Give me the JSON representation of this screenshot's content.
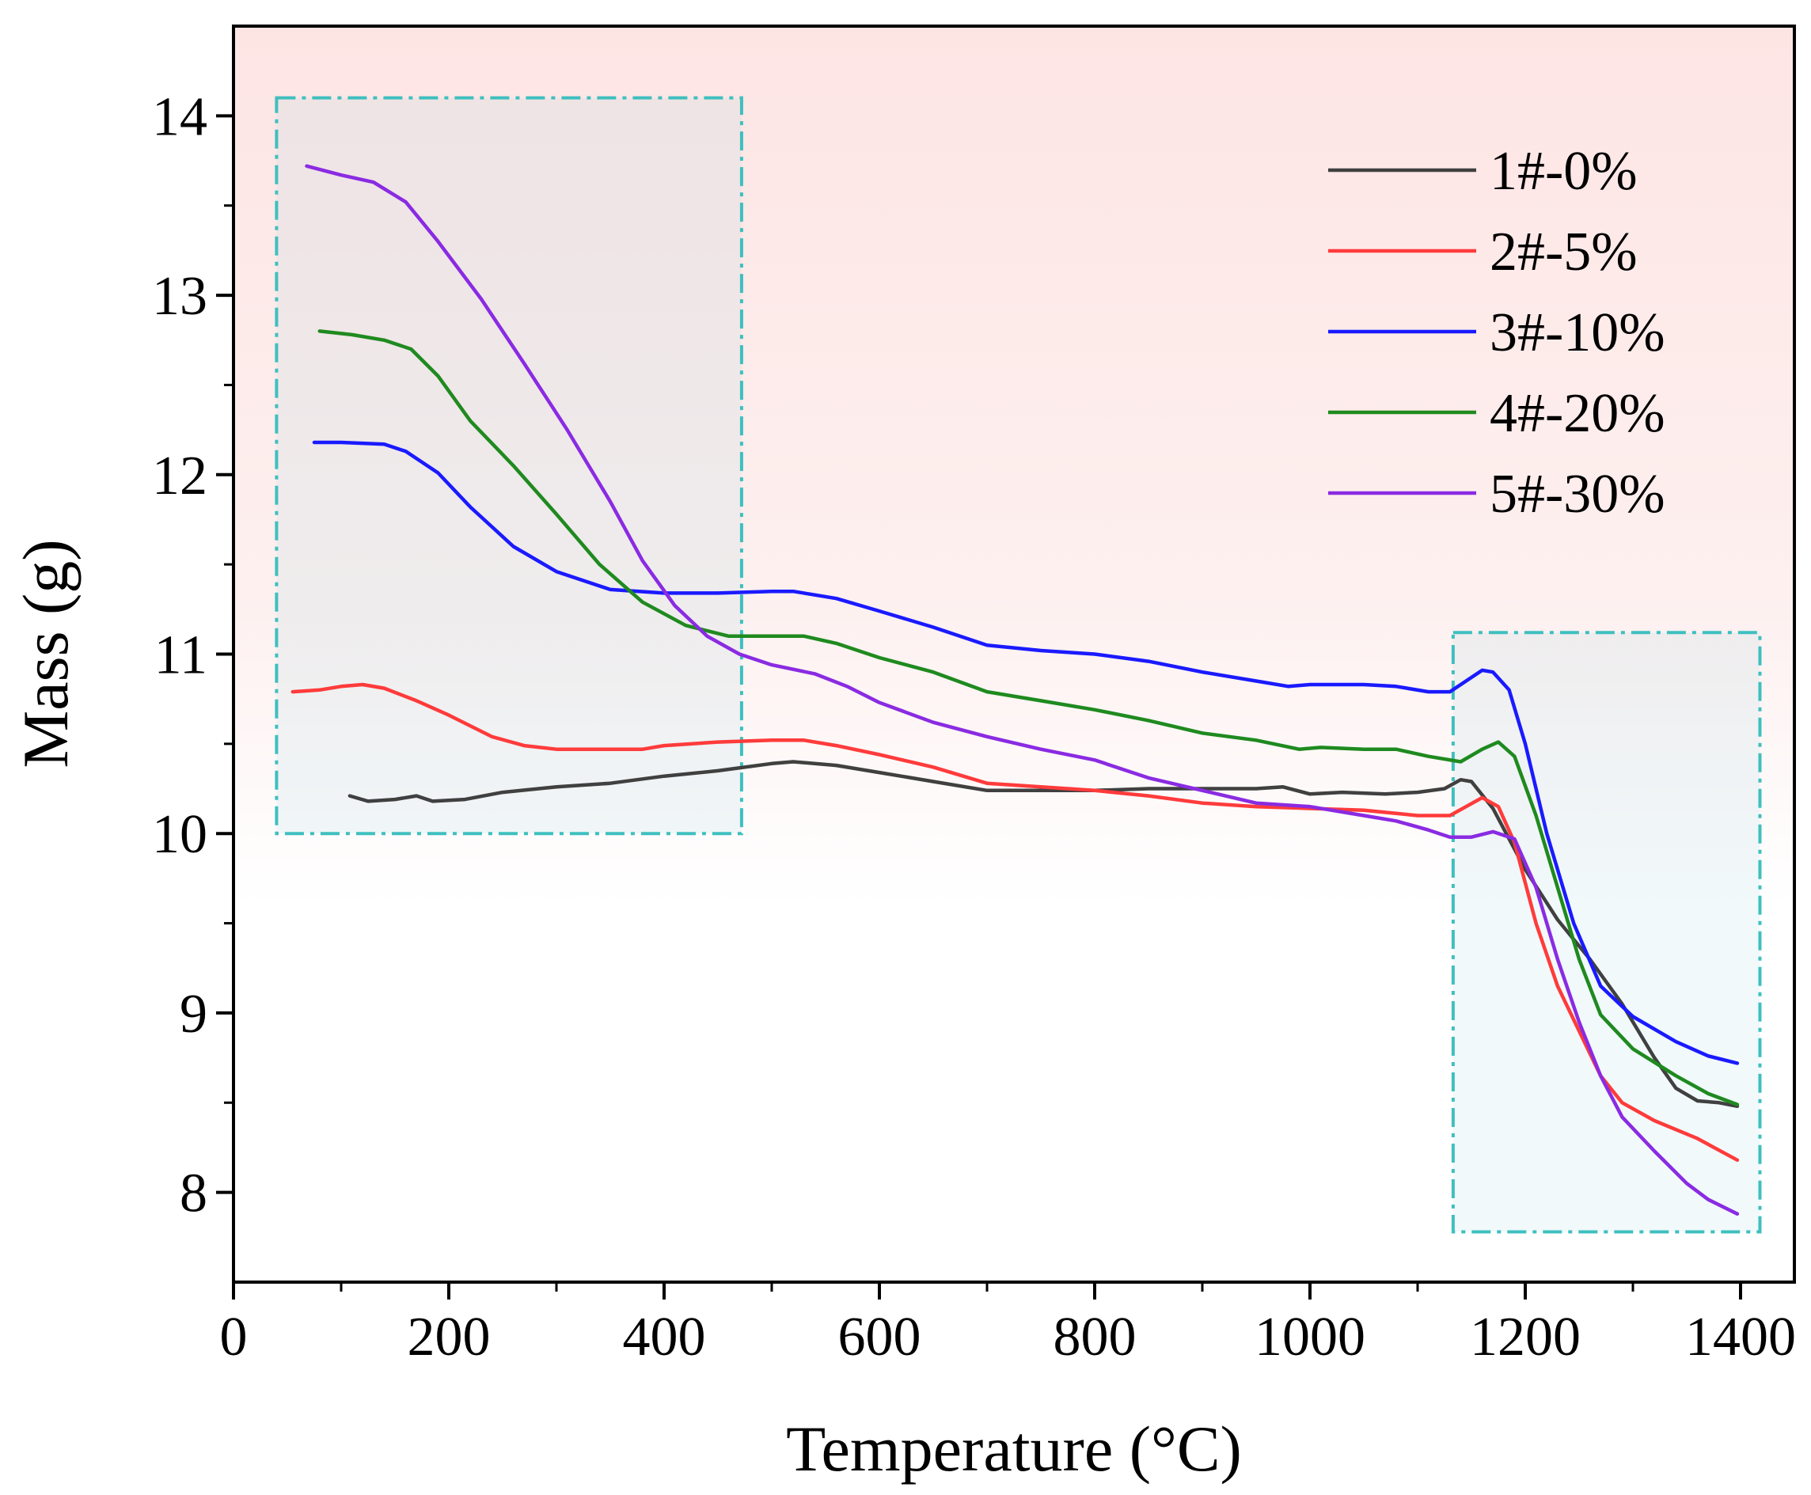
{
  "chart_data": {
    "type": "line",
    "title": "",
    "xlabel": "Temperature (°C)",
    "ylabel": "Mass (g)",
    "xlim": [
      0,
      1450
    ],
    "ylim": [
      7.5,
      14.5
    ],
    "xticks": [
      0,
      200,
      400,
      600,
      800,
      1000,
      1200,
      1400
    ],
    "xtick_labels": [
      "0",
      "200",
      "400",
      "600",
      "800",
      "1000",
      "1200",
      "1400"
    ],
    "yticks": [
      8,
      9,
      10,
      11,
      12,
      13,
      14
    ],
    "ytick_labels": [
      "8",
      "9",
      "10",
      "11",
      "12",
      "13",
      "14"
    ],
    "legend_position": "top-right",
    "grid": false,
    "highlight_regions": [
      {
        "x": [
          40,
          472
        ],
        "y": [
          10.0,
          14.1
        ],
        "style": "dash-dot",
        "color": "#3fbfbf"
      },
      {
        "x": [
          1133,
          1418
        ],
        "y": [
          7.78,
          11.12
        ],
        "style": "dash-dot",
        "color": "#3fbfbf"
      }
    ],
    "series": [
      {
        "name": "1#-0%",
        "color": "#404040",
        "points": [
          [
            108,
            10.21
          ],
          [
            125,
            10.18
          ],
          [
            150,
            10.19
          ],
          [
            170,
            10.21
          ],
          [
            185,
            10.18
          ],
          [
            215,
            10.19
          ],
          [
            250,
            10.23
          ],
          [
            300,
            10.26
          ],
          [
            350,
            10.28
          ],
          [
            400,
            10.32
          ],
          [
            450,
            10.35
          ],
          [
            500,
            10.39
          ],
          [
            520,
            10.4
          ],
          [
            560,
            10.38
          ],
          [
            600,
            10.34
          ],
          [
            650,
            10.29
          ],
          [
            700,
            10.24
          ],
          [
            750,
            10.24
          ],
          [
            800,
            10.24
          ],
          [
            850,
            10.25
          ],
          [
            900,
            10.25
          ],
          [
            950,
            10.25
          ],
          [
            975,
            10.26
          ],
          [
            1000,
            10.22
          ],
          [
            1030,
            10.23
          ],
          [
            1070,
            10.22
          ],
          [
            1100,
            10.23
          ],
          [
            1125,
            10.25
          ],
          [
            1140,
            10.3
          ],
          [
            1150,
            10.29
          ],
          [
            1170,
            10.14
          ],
          [
            1200,
            9.8
          ],
          [
            1230,
            9.52
          ],
          [
            1260,
            9.3
          ],
          [
            1290,
            9.05
          ],
          [
            1320,
            8.75
          ],
          [
            1340,
            8.58
          ],
          [
            1360,
            8.51
          ],
          [
            1380,
            8.5
          ],
          [
            1397,
            8.48
          ]
        ]
      },
      {
        "name": "2#-5%",
        "color": "#ff3b3b",
        "points": [
          [
            55,
            10.79
          ],
          [
            80,
            10.8
          ],
          [
            100,
            10.82
          ],
          [
            120,
            10.83
          ],
          [
            140,
            10.81
          ],
          [
            170,
            10.74
          ],
          [
            200,
            10.66
          ],
          [
            240,
            10.54
          ],
          [
            270,
            10.49
          ],
          [
            300,
            10.47
          ],
          [
            350,
            10.47
          ],
          [
            380,
            10.47
          ],
          [
            400,
            10.49
          ],
          [
            450,
            10.51
          ],
          [
            500,
            10.52
          ],
          [
            530,
            10.52
          ],
          [
            560,
            10.49
          ],
          [
            600,
            10.44
          ],
          [
            650,
            10.37
          ],
          [
            700,
            10.28
          ],
          [
            750,
            10.26
          ],
          [
            800,
            10.24
          ],
          [
            850,
            10.21
          ],
          [
            900,
            10.17
          ],
          [
            950,
            10.15
          ],
          [
            1000,
            10.14
          ],
          [
            1050,
            10.13
          ],
          [
            1100,
            10.1
          ],
          [
            1130,
            10.1
          ],
          [
            1145,
            10.15
          ],
          [
            1160,
            10.2
          ],
          [
            1175,
            10.15
          ],
          [
            1190,
            9.95
          ],
          [
            1210,
            9.5
          ],
          [
            1230,
            9.15
          ],
          [
            1250,
            8.9
          ],
          [
            1270,
            8.65
          ],
          [
            1290,
            8.5
          ],
          [
            1320,
            8.4
          ],
          [
            1360,
            8.3
          ],
          [
            1397,
            8.18
          ]
        ]
      },
      {
        "name": "3#-10%",
        "color": "#1a1aff",
        "points": [
          [
            75,
            12.18
          ],
          [
            100,
            12.18
          ],
          [
            140,
            12.17
          ],
          [
            160,
            12.13
          ],
          [
            190,
            12.01
          ],
          [
            220,
            11.82
          ],
          [
            260,
            11.6
          ],
          [
            300,
            11.46
          ],
          [
            350,
            11.36
          ],
          [
            400,
            11.34
          ],
          [
            450,
            11.34
          ],
          [
            500,
            11.35
          ],
          [
            520,
            11.35
          ],
          [
            560,
            11.31
          ],
          [
            600,
            11.24
          ],
          [
            650,
            11.15
          ],
          [
            700,
            11.05
          ],
          [
            750,
            11.02
          ],
          [
            800,
            11.0
          ],
          [
            850,
            10.96
          ],
          [
            900,
            10.9
          ],
          [
            950,
            10.85
          ],
          [
            980,
            10.82
          ],
          [
            1000,
            10.83
          ],
          [
            1050,
            10.83
          ],
          [
            1080,
            10.82
          ],
          [
            1110,
            10.79
          ],
          [
            1130,
            10.79
          ],
          [
            1145,
            10.85
          ],
          [
            1160,
            10.91
          ],
          [
            1170,
            10.9
          ],
          [
            1185,
            10.8
          ],
          [
            1200,
            10.5
          ],
          [
            1220,
            10.0
          ],
          [
            1245,
            9.5
          ],
          [
            1270,
            9.15
          ],
          [
            1300,
            8.98
          ],
          [
            1340,
            8.84
          ],
          [
            1370,
            8.76
          ],
          [
            1397,
            8.72
          ]
        ]
      },
      {
        "name": "4#-20%",
        "color": "#1f8a1f",
        "points": [
          [
            80,
            12.8
          ],
          [
            110,
            12.78
          ],
          [
            140,
            12.75
          ],
          [
            165,
            12.7
          ],
          [
            190,
            12.55
          ],
          [
            220,
            12.3
          ],
          [
            260,
            12.05
          ],
          [
            300,
            11.78
          ],
          [
            340,
            11.5
          ],
          [
            380,
            11.29
          ],
          [
            420,
            11.16
          ],
          [
            460,
            11.1
          ],
          [
            500,
            11.1
          ],
          [
            530,
            11.1
          ],
          [
            560,
            11.06
          ],
          [
            600,
            10.98
          ],
          [
            650,
            10.9
          ],
          [
            700,
            10.79
          ],
          [
            750,
            10.74
          ],
          [
            800,
            10.69
          ],
          [
            850,
            10.63
          ],
          [
            900,
            10.56
          ],
          [
            950,
            10.52
          ],
          [
            990,
            10.47
          ],
          [
            1010,
            10.48
          ],
          [
            1050,
            10.47
          ],
          [
            1080,
            10.47
          ],
          [
            1110,
            10.43
          ],
          [
            1140,
            10.4
          ],
          [
            1160,
            10.47
          ],
          [
            1175,
            10.51
          ],
          [
            1190,
            10.43
          ],
          [
            1210,
            10.1
          ],
          [
            1230,
            9.7
          ],
          [
            1250,
            9.3
          ],
          [
            1270,
            8.99
          ],
          [
            1300,
            8.8
          ],
          [
            1340,
            8.65
          ],
          [
            1370,
            8.55
          ],
          [
            1397,
            8.49
          ]
        ]
      },
      {
        "name": "5#-30%",
        "color": "#8a2be2",
        "points": [
          [
            68,
            13.72
          ],
          [
            100,
            13.67
          ],
          [
            130,
            13.63
          ],
          [
            160,
            13.52
          ],
          [
            190,
            13.3
          ],
          [
            230,
            12.98
          ],
          [
            270,
            12.62
          ],
          [
            310,
            12.25
          ],
          [
            350,
            11.85
          ],
          [
            380,
            11.52
          ],
          [
            410,
            11.27
          ],
          [
            440,
            11.1
          ],
          [
            470,
            11.0
          ],
          [
            500,
            10.94
          ],
          [
            540,
            10.89
          ],
          [
            570,
            10.82
          ],
          [
            600,
            10.73
          ],
          [
            650,
            10.62
          ],
          [
            700,
            10.54
          ],
          [
            750,
            10.47
          ],
          [
            800,
            10.41
          ],
          [
            850,
            10.31
          ],
          [
            900,
            10.24
          ],
          [
            950,
            10.17
          ],
          [
            1000,
            10.15
          ],
          [
            1050,
            10.1
          ],
          [
            1080,
            10.07
          ],
          [
            1110,
            10.02
          ],
          [
            1130,
            9.98
          ],
          [
            1150,
            9.98
          ],
          [
            1170,
            10.01
          ],
          [
            1190,
            9.97
          ],
          [
            1210,
            9.7
          ],
          [
            1230,
            9.3
          ],
          [
            1250,
            8.95
          ],
          [
            1270,
            8.65
          ],
          [
            1290,
            8.42
          ],
          [
            1320,
            8.23
          ],
          [
            1350,
            8.05
          ],
          [
            1370,
            7.96
          ],
          [
            1397,
            7.88
          ]
        ]
      }
    ]
  }
}
